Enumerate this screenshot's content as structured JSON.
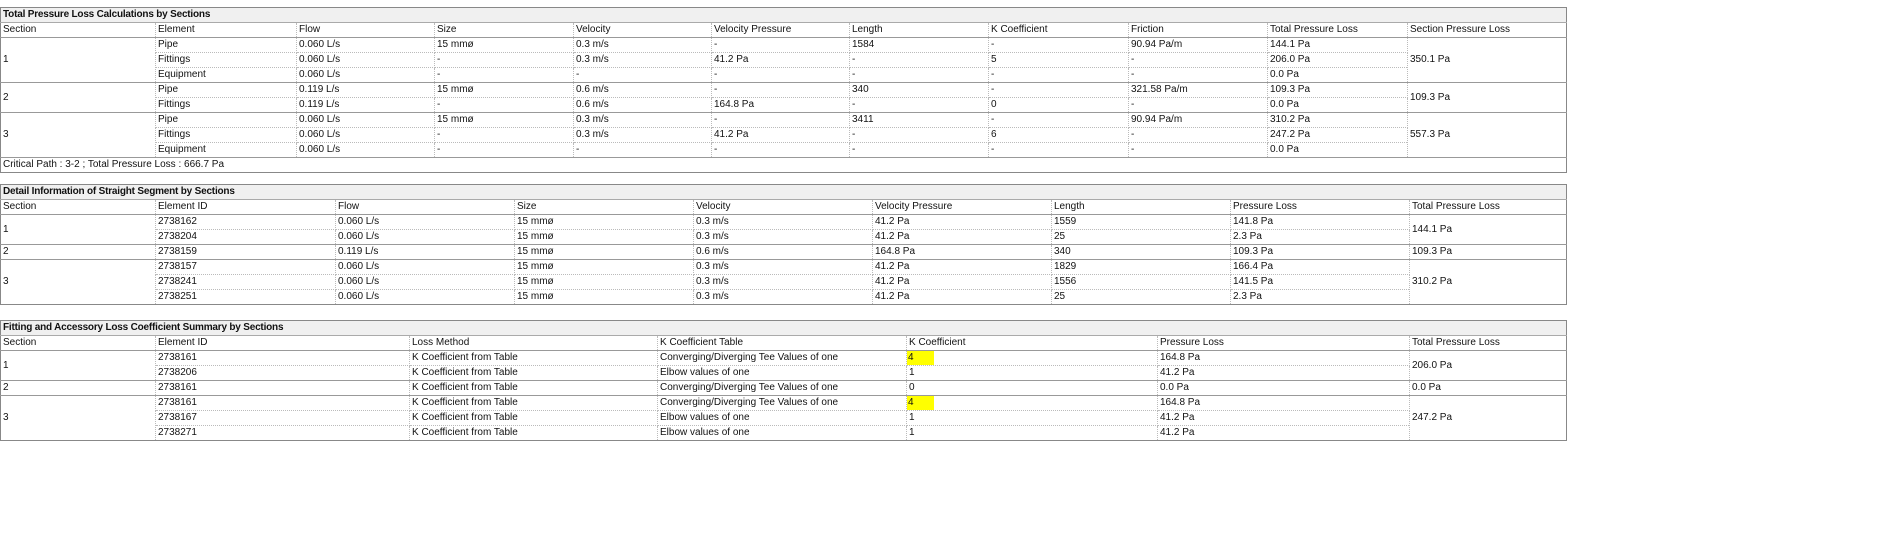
{
  "total_pressure_loss": {
    "title": "Total Pressure Loss Calculations by Sections",
    "columns": [
      "Section",
      "Element",
      "Flow",
      "Size",
      "Velocity",
      "Velocity Pressure",
      "Length",
      "K Coefficient",
      "Friction",
      "Total Pressure Loss",
      "Section Pressure Loss"
    ],
    "sections": [
      {
        "section": "1",
        "section_loss": "350.1 Pa",
        "rows": [
          [
            "Pipe",
            "0.060 L/s",
            "15 mmø",
            "0.3 m/s",
            "-",
            "1584",
            "-",
            "90.94 Pa/m",
            "144.1 Pa"
          ],
          [
            "Fittings",
            "0.060 L/s",
            "-",
            "0.3 m/s",
            "41.2 Pa",
            "-",
            "5",
            "-",
            "206.0 Pa"
          ],
          [
            "Equipment",
            "0.060 L/s",
            "-",
            "-",
            "-",
            "-",
            "-",
            "-",
            "0.0 Pa"
          ]
        ]
      },
      {
        "section": "2",
        "section_loss": "109.3 Pa",
        "rows": [
          [
            "Pipe",
            "0.119 L/s",
            "15 mmø",
            "0.6 m/s",
            "-",
            "340",
            "-",
            "321.58 Pa/m",
            "109.3 Pa"
          ],
          [
            "Fittings",
            "0.119 L/s",
            "-",
            "0.6 m/s",
            "164.8 Pa",
            "-",
            "0",
            "-",
            "0.0 Pa"
          ]
        ]
      },
      {
        "section": "3",
        "section_loss": "557.3 Pa",
        "rows": [
          [
            "Pipe",
            "0.060 L/s",
            "15 mmø",
            "0.3 m/s",
            "-",
            "3411",
            "-",
            "90.94 Pa/m",
            "310.2 Pa"
          ],
          [
            "Fittings",
            "0.060 L/s",
            "-",
            "0.3 m/s",
            "41.2 Pa",
            "-",
            "6",
            "-",
            "247.2 Pa"
          ],
          [
            "Equipment",
            "0.060 L/s",
            "-",
            "-",
            "-",
            "-",
            "-",
            "-",
            "0.0 Pa"
          ]
        ]
      }
    ],
    "footer": "Critical Path : 3-2 ; Total Pressure Loss : 666.7 Pa"
  },
  "straight_segment": {
    "title": "Detail Information of Straight Segment by Sections",
    "columns": [
      "Section",
      "Element ID",
      "Flow",
      "Size",
      "Velocity",
      "Velocity Pressure",
      "Length",
      "Pressure Loss",
      "Total Pressure Loss"
    ],
    "sections": [
      {
        "section": "1",
        "section_loss": "144.1 Pa",
        "rows": [
          [
            "2738162",
            "0.060 L/s",
            "15 mmø",
            "0.3 m/s",
            "41.2 Pa",
            "1559",
            "141.8 Pa"
          ],
          [
            "2738204",
            "0.060 L/s",
            "15 mmø",
            "0.3 m/s",
            "41.2 Pa",
            "25",
            "2.3 Pa"
          ]
        ]
      },
      {
        "section": "2",
        "section_loss": "109.3 Pa",
        "rows": [
          [
            "2738159",
            "0.119 L/s",
            "15 mmø",
            "0.6 m/s",
            "164.8 Pa",
            "340",
            "109.3 Pa"
          ]
        ]
      },
      {
        "section": "3",
        "section_loss": "310.2 Pa",
        "rows": [
          [
            "2738157",
            "0.060 L/s",
            "15 mmø",
            "0.3 m/s",
            "41.2 Pa",
            "1829",
            "166.4 Pa"
          ],
          [
            "2738241",
            "0.060 L/s",
            "15 mmø",
            "0.3 m/s",
            "41.2 Pa",
            "1556",
            "141.5 Pa"
          ],
          [
            "2738251",
            "0.060 L/s",
            "15 mmø",
            "0.3 m/s",
            "41.2 Pa",
            "25",
            "2.3 Pa"
          ]
        ]
      }
    ]
  },
  "fitting_summary": {
    "title": "Fitting and Accessory Loss Coefficient Summary by Sections",
    "columns": [
      "Section",
      "Element ID",
      "Loss Method",
      "K Coefficient Table",
      "K Coefficient",
      "Pressure Loss",
      "Total Pressure Loss"
    ],
    "highlight_color": "#ffff00",
    "highlighted_column": 4,
    "sections": [
      {
        "section": "1",
        "section_loss": "206.0 Pa",
        "rows": [
          [
            "2738161",
            "K Coefficient from Table",
            "Converging/Diverging Tee Values of one",
            "4",
            "164.8 Pa"
          ],
          [
            "2738206",
            "K Coefficient from Table",
            "Elbow values of one",
            "1",
            "41.2 Pa"
          ]
        ],
        "highlight": [
          true,
          false
        ]
      },
      {
        "section": "2",
        "section_loss": "0.0 Pa",
        "rows": [
          [
            "2738161",
            "K Coefficient from Table",
            "Converging/Diverging Tee Values of one",
            "0",
            "0.0 Pa"
          ]
        ],
        "highlight": [
          false
        ]
      },
      {
        "section": "3",
        "section_loss": "247.2 Pa",
        "rows": [
          [
            "2738161",
            "K Coefficient from Table",
            "Converging/Diverging Tee Values of one",
            "4",
            "164.8 Pa"
          ],
          [
            "2738167",
            "K Coefficient from Table",
            "Elbow values of one",
            "1",
            "41.2 Pa"
          ],
          [
            "2738271",
            "K Coefficient from Table",
            "Elbow values of one",
            "1",
            "41.2 Pa"
          ]
        ],
        "highlight": [
          true,
          false,
          false
        ]
      }
    ]
  }
}
